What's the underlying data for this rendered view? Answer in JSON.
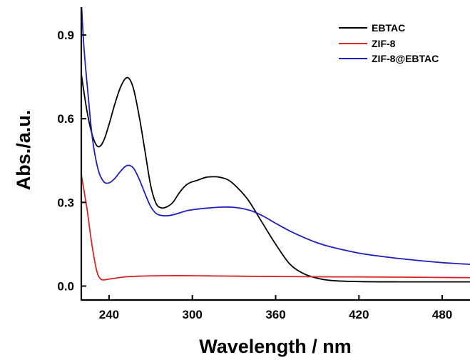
{
  "chart_data": {
    "type": "line",
    "xlabel": "Wavelength / nm",
    "ylabel": "Abs./a.u.",
    "xlim": [
      220,
      500
    ],
    "ylim": [
      -0.05,
      1.0
    ],
    "xticks": [
      "240",
      "300",
      "360",
      "420",
      "480"
    ],
    "yticks": [
      "0.0",
      "0.3",
      "0.6",
      "0.9"
    ],
    "grid": false,
    "legend_position": "top-right",
    "series": [
      {
        "name": "EBTAC",
        "color": "#000000",
        "points": [
          [
            220,
            0.76
          ],
          [
            224,
            0.63
          ],
          [
            228,
            0.54
          ],
          [
            232,
            0.5
          ],
          [
            236,
            0.52
          ],
          [
            240,
            0.58
          ],
          [
            244,
            0.65
          ],
          [
            248,
            0.71
          ],
          [
            252,
            0.745
          ],
          [
            255,
            0.74
          ],
          [
            258,
            0.7
          ],
          [
            262,
            0.6
          ],
          [
            266,
            0.48
          ],
          [
            270,
            0.36
          ],
          [
            274,
            0.295
          ],
          [
            278,
            0.28
          ],
          [
            282,
            0.285
          ],
          [
            286,
            0.3
          ],
          [
            290,
            0.33
          ],
          [
            294,
            0.355
          ],
          [
            298,
            0.37
          ],
          [
            304,
            0.38
          ],
          [
            310,
            0.39
          ],
          [
            316,
            0.392
          ],
          [
            320,
            0.39
          ],
          [
            326,
            0.38
          ],
          [
            332,
            0.355
          ],
          [
            340,
            0.31
          ],
          [
            350,
            0.23
          ],
          [
            360,
            0.15
          ],
          [
            370,
            0.08
          ],
          [
            380,
            0.045
          ],
          [
            390,
            0.028
          ],
          [
            400,
            0.02
          ],
          [
            420,
            0.016
          ],
          [
            450,
            0.015
          ],
          [
            480,
            0.015
          ],
          [
            500,
            0.015
          ]
        ]
      },
      {
        "name": "ZIF-8",
        "color": "#d62728",
        "points": [
          [
            220,
            0.4
          ],
          [
            224,
            0.28
          ],
          [
            227,
            0.17
          ],
          [
            230,
            0.08
          ],
          [
            232,
            0.04
          ],
          [
            234,
            0.025
          ],
          [
            236,
            0.022
          ],
          [
            240,
            0.025
          ],
          [
            250,
            0.032
          ],
          [
            260,
            0.035
          ],
          [
            280,
            0.037
          ],
          [
            300,
            0.037
          ],
          [
            340,
            0.035
          ],
          [
            400,
            0.033
          ],
          [
            450,
            0.032
          ],
          [
            500,
            0.03
          ]
        ]
      },
      {
        "name": "ZIF-8@EBTAC",
        "color": "#1f1fbf",
        "points": [
          [
            220,
            1.02
          ],
          [
            222,
            0.85
          ],
          [
            225,
            0.68
          ],
          [
            228,
            0.53
          ],
          [
            232,
            0.42
          ],
          [
            236,
            0.375
          ],
          [
            240,
            0.37
          ],
          [
            244,
            0.385
          ],
          [
            248,
            0.41
          ],
          [
            252,
            0.43
          ],
          [
            255,
            0.432
          ],
          [
            258,
            0.42
          ],
          [
            262,
            0.38
          ],
          [
            266,
            0.33
          ],
          [
            270,
            0.285
          ],
          [
            274,
            0.26
          ],
          [
            278,
            0.253
          ],
          [
            282,
            0.252
          ],
          [
            288,
            0.258
          ],
          [
            296,
            0.27
          ],
          [
            304,
            0.276
          ],
          [
            312,
            0.28
          ],
          [
            320,
            0.283
          ],
          [
            328,
            0.283
          ],
          [
            336,
            0.278
          ],
          [
            344,
            0.267
          ],
          [
            352,
            0.248
          ],
          [
            360,
            0.225
          ],
          [
            370,
            0.198
          ],
          [
            380,
            0.175
          ],
          [
            390,
            0.155
          ],
          [
            400,
            0.14
          ],
          [
            420,
            0.118
          ],
          [
            440,
            0.104
          ],
          [
            460,
            0.093
          ],
          [
            480,
            0.084
          ],
          [
            500,
            0.078
          ]
        ]
      }
    ]
  }
}
